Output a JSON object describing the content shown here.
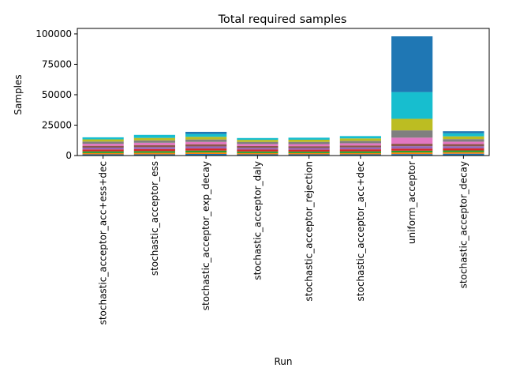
{
  "chart_data": {
    "type": "bar",
    "stacked": true,
    "title": "Total required samples",
    "xlabel": "Run",
    "ylabel": "Samples",
    "ylim": [
      0,
      104500
    ],
    "yticks": [
      0,
      25000,
      50000,
      75000,
      100000
    ],
    "categories": [
      "stochastic_acceptor_acc+ess+dec",
      "stochastic_acceptor_ess",
      "stochastic_acceptor_exp_decay",
      "stochastic_acceptor_daly",
      "stochastic_acceptor_rejection",
      "stochastic_acceptor_acc+dec",
      "uniform_acceptor",
      "stochastic_acceptor_decay"
    ],
    "series": [
      {
        "color": "#1f77b4",
        "values": [
          1000,
          1000,
          1300,
          1000,
          1000,
          1000,
          1200,
          1500
        ]
      },
      {
        "color": "#ff7f0e",
        "values": [
          1000,
          1200,
          1200,
          1000,
          1000,
          1000,
          1300,
          1200
        ]
      },
      {
        "color": "#2ca02c",
        "values": [
          1500,
          1500,
          1600,
          1400,
          1300,
          1500,
          1500,
          1500
        ]
      },
      {
        "color": "#d62728",
        "values": [
          1500,
          1600,
          1700,
          1500,
          1500,
          1600,
          1700,
          1700
        ]
      },
      {
        "color": "#9467bd",
        "values": [
          1500,
          1600,
          1700,
          1400,
          1400,
          1600,
          2000,
          1700
        ]
      },
      {
        "color": "#8c564b",
        "values": [
          1500,
          1700,
          1800,
          1500,
          1500,
          1600,
          2000,
          1800
        ]
      },
      {
        "color": "#e377c2",
        "values": [
          1700,
          1900,
          1900,
          1700,
          1700,
          1800,
          5000,
          2000
        ]
      },
      {
        "color": "#7f7f7f",
        "values": [
          1800,
          2000,
          2000,
          1700,
          1800,
          2000,
          6000,
          2100
        ]
      },
      {
        "color": "#bcbd22",
        "values": [
          1800,
          2000,
          2200,
          1700,
          1800,
          2000,
          9500,
          2300
        ]
      },
      {
        "color": "#17becf",
        "values": [
          1700,
          2500,
          2400,
          1500,
          1700,
          1900,
          22000,
          2500
        ]
      },
      {
        "color": "#1f77b4",
        "values": [
          0,
          0,
          1700,
          0,
          0,
          0,
          45800,
          1700
        ]
      }
    ]
  }
}
